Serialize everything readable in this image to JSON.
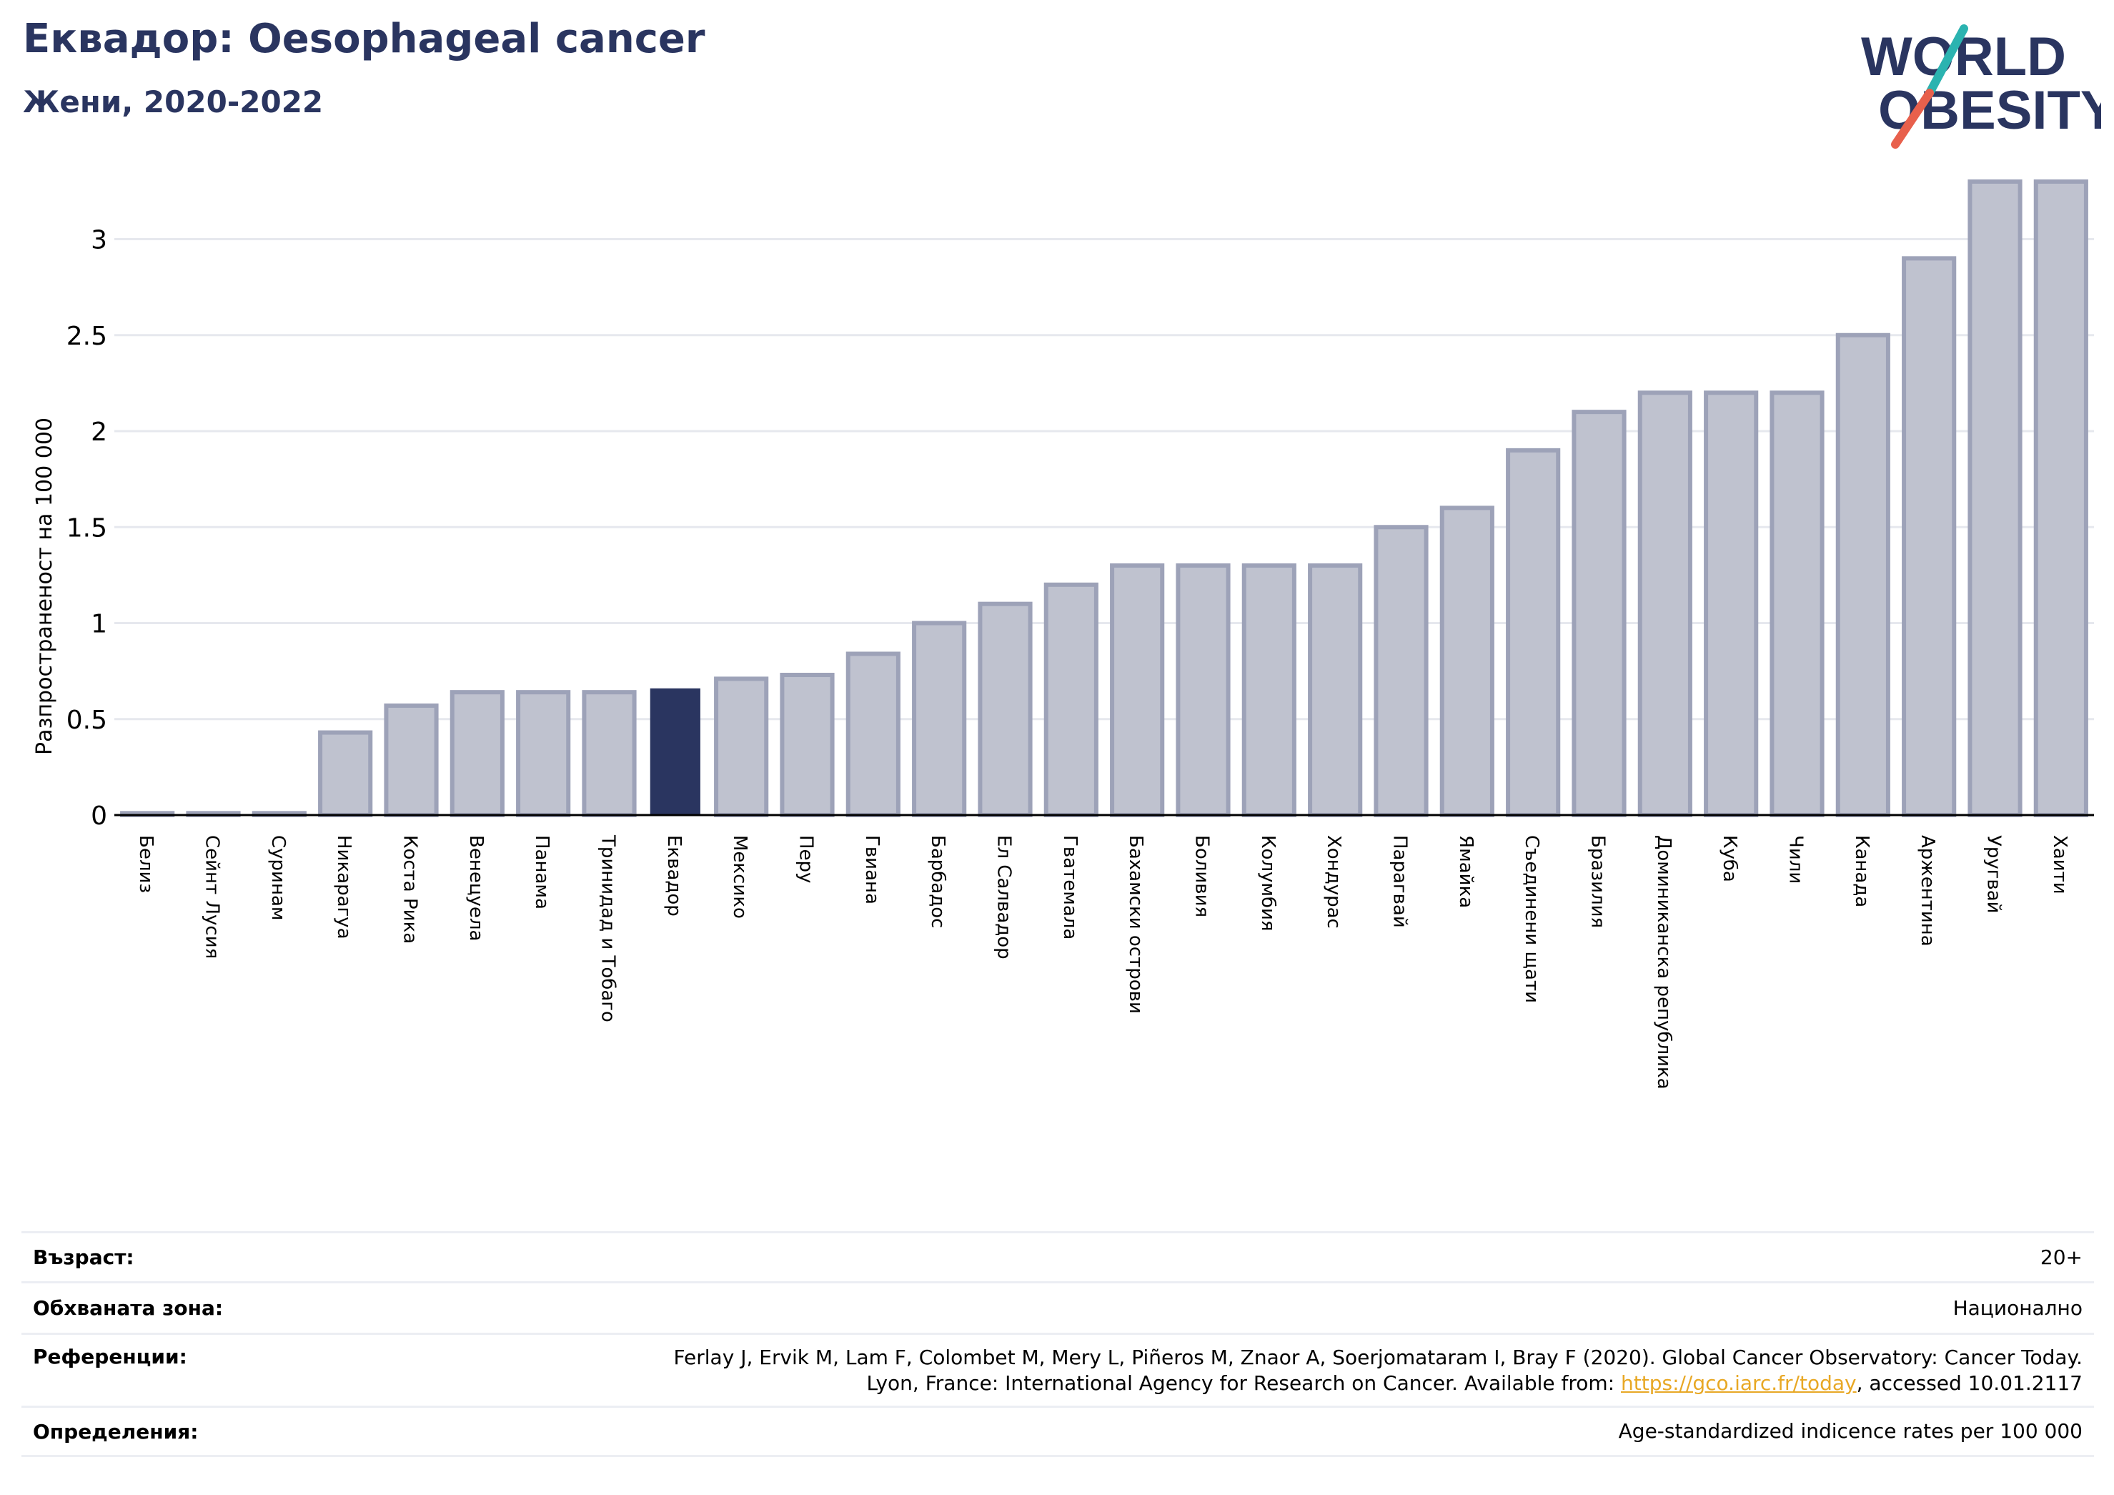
{
  "header": {
    "title": "Еквадор: Oesophageal cancer",
    "subtitle": "Жени, 2020-2022"
  },
  "logo": {
    "line1": "WORLD",
    "line2": "OBESITY",
    "colors": {
      "text": "#2a3560",
      "slash_top": "#2bb3b0",
      "slash_bottom": "#e8604c"
    }
  },
  "colors": {
    "bar": "#bfc2cf",
    "bar_border": "#9da2b8",
    "highlight": "#2a3560",
    "grid": "#e6e8ee",
    "axis": "#000000"
  },
  "chart_data": {
    "type": "bar",
    "ylabel": "Разпространеност  на 100 000",
    "ylim": [
      0,
      3.3
    ],
    "yticks": [
      0,
      0.5,
      1,
      1.5,
      2,
      2.5,
      3
    ],
    "ytick_labels": [
      "0",
      "0.5",
      "1",
      "1.5",
      "2",
      "2.5",
      "3"
    ],
    "grid": true,
    "highlight": "Еквадор",
    "categories": [
      "Белиз",
      "Сейнт Лусия",
      "Суринам",
      "Никарагуа",
      "Коста Рика",
      "Венецуела",
      "Панама",
      "Тринидад и Тобаго",
      "Еквадор",
      "Мексико",
      "Перу",
      "Гвиана",
      "Барбадос",
      "Ел Салвадор",
      "Гватемала",
      "Бахамски острови",
      "Боливия",
      "Колумбия",
      "Хондурас",
      "Парагвай",
      "Ямайка",
      "Съединени щати",
      "Бразилия",
      "Доминиканска република",
      "Куба",
      "Чили",
      "Канада",
      "Аржентина",
      "Уругвай",
      "Хаити"
    ],
    "values": [
      0.01,
      0.01,
      0.01,
      0.43,
      0.57,
      0.64,
      0.64,
      0.64,
      0.66,
      0.71,
      0.73,
      0.84,
      1.0,
      1.1,
      1.2,
      1.3,
      1.3,
      1.3,
      1.3,
      1.5,
      1.6,
      1.9,
      2.1,
      2.2,
      2.2,
      2.2,
      2.5,
      2.9,
      3.3,
      3.3
    ]
  },
  "info": {
    "age_label": "Възраст:",
    "age_value": "20+",
    "area_label": "Обхваната зона:",
    "area_value": "Национално",
    "ref_label": "Референции:",
    "ref_line1": "Ferlay J, Ervik M, Lam F, Colombet M, Mery L, Piñeros M, Znaor A, Soerjomataram I, Bray F (2020). Global Cancer Observatory: Cancer Today.",
    "ref_line2_prefix": "Lyon, France: International Agency for Research on Cancer. Available from: ",
    "ref_link": "https://gco.iarc.fr/today",
    "ref_line2_suffix": ", accessed 10.01.2117",
    "def_label": "Определения:",
    "def_value": "Age-standardized indicence rates per 100 000"
  }
}
